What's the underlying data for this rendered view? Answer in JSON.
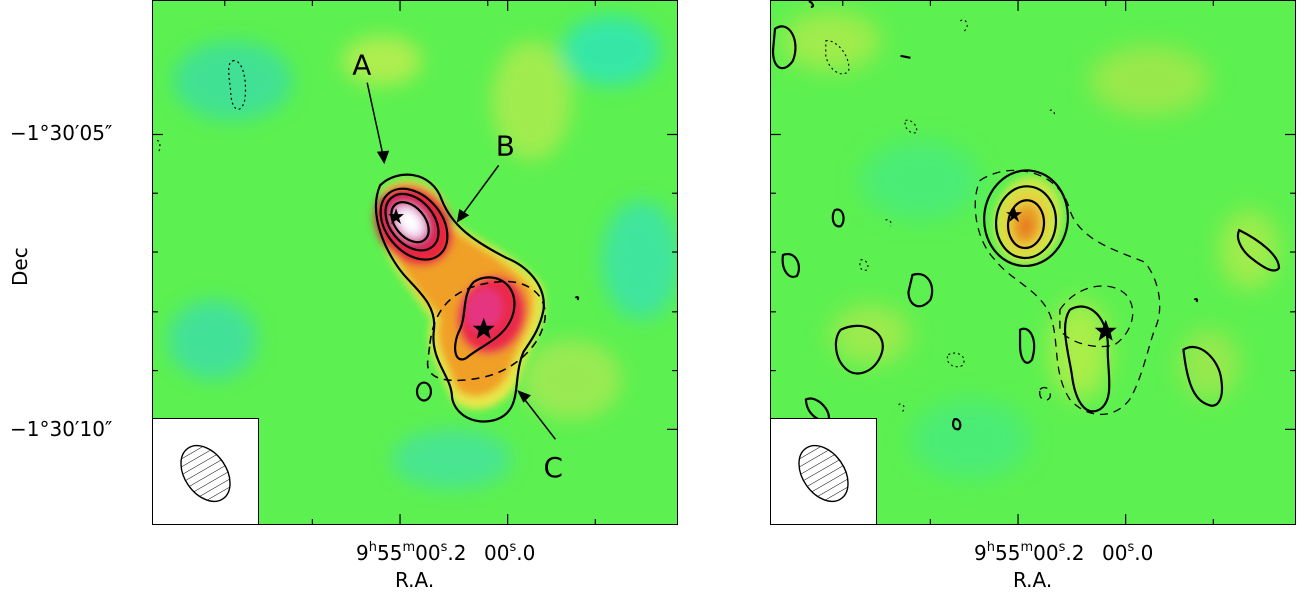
{
  "figure": {
    "yaxis": {
      "label": "Dec",
      "ticks": [
        "−1°30′05″",
        "−1°30′10″"
      ]
    },
    "xaxis": {
      "label": "R.A.",
      "ticks": [
        {
          "h": "9",
          "h_unit": "h",
          "m": "55",
          "m_unit": "m",
          "s_int": "00",
          "s_unit": "s",
          "s_frac": ".2"
        },
        {
          "s_int": "00",
          "s_unit": "s",
          "s_frac": ".0"
        }
      ]
    },
    "left_panel": {
      "annotations": [
        "A",
        "B",
        "C"
      ]
    },
    "colors": {
      "background": "#5cf050",
      "cyan": "#2ce8a8",
      "yellow": "#e8f04a",
      "orange": "#f0a020",
      "red": "#e8203c",
      "magenta": "#e0307a",
      "white": "#ffffff"
    }
  }
}
